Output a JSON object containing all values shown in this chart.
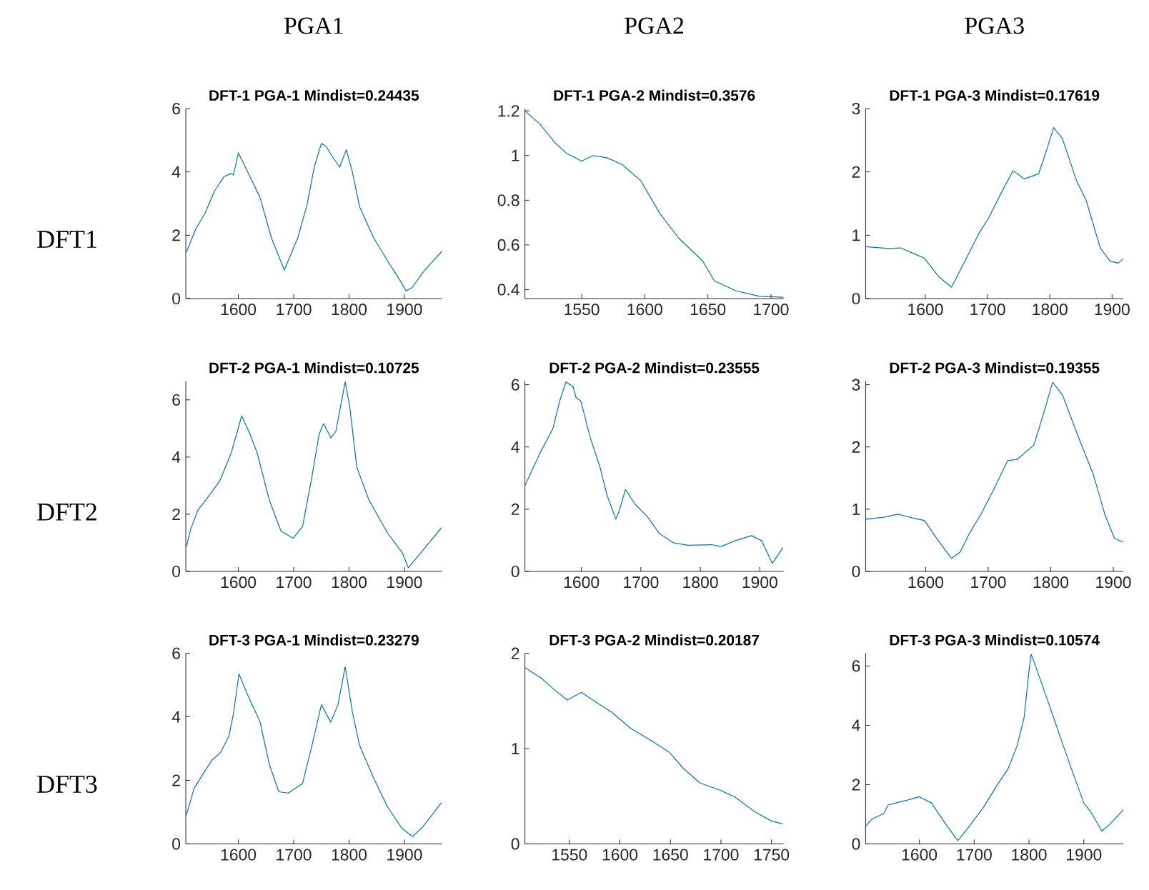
{
  "chart_data": [
    {
      "type": "line",
      "title": "DFT-1 PGA-1 Mindist=0.24435",
      "annotations": [
        "PGA1",
        "DFT1"
      ],
      "color": "#0072bd",
      "xlim": [
        1505,
        1968
      ],
      "ylim": [
        0,
        6
      ],
      "xticks": [
        1600,
        1700,
        1800,
        1900
      ],
      "yticks": [
        0,
        2,
        4,
        6
      ],
      "x": [
        1506,
        1523,
        1540,
        1557,
        1574,
        1587,
        1591,
        1600,
        1621,
        1639,
        1660,
        1683,
        1707,
        1724,
        1737,
        1750,
        1759,
        1769,
        1783,
        1795,
        1806,
        1819,
        1845,
        1871,
        1893,
        1903,
        1914,
        1935,
        1968
      ],
      "values": [
        1.46,
        2.2,
        2.7,
        3.4,
        3.85,
        3.95,
        3.9,
        4.6,
        3.85,
        3.2,
        1.9,
        0.9,
        1.9,
        2.95,
        4.15,
        4.9,
        4.8,
        4.5,
        4.15,
        4.7,
        4.0,
        2.9,
        1.9,
        1.15,
        0.55,
        0.24,
        0.35,
        0.86,
        1.5
      ]
    },
    {
      "type": "line",
      "title": "DFT-1 PGA-2 Mindist=0.3576",
      "annotations": [
        "PGA2"
      ],
      "color": "#0072bd",
      "xlim": [
        1505,
        1710
      ],
      "ylim": [
        0.36,
        1.21
      ],
      "xticks": [
        1550,
        1600,
        1650,
        1700
      ],
      "yticks": [
        0.4,
        0.6,
        0.8,
        1,
        1.2
      ],
      "x": [
        1505,
        1517,
        1529,
        1538,
        1550,
        1559,
        1570,
        1582,
        1597,
        1612,
        1627,
        1646,
        1655,
        1672,
        1691,
        1710
      ],
      "values": [
        1.2,
        1.14,
        1.056,
        1.01,
        0.975,
        1.0,
        0.99,
        0.96,
        0.886,
        0.74,
        0.63,
        0.527,
        0.44,
        0.395,
        0.37,
        0.366
      ]
    },
    {
      "type": "line",
      "title": "DFT-1 PGA-3 Mindist=0.17619",
      "annotations": [
        "PGA3"
      ],
      "color": "#0072bd",
      "xlim": [
        1504,
        1918
      ],
      "ylim": [
        0,
        3
      ],
      "xticks": [
        1600,
        1700,
        1800,
        1900
      ],
      "yticks": [
        0,
        1,
        2,
        3
      ],
      "x": [
        1504,
        1541,
        1560,
        1598,
        1621,
        1642,
        1663,
        1686,
        1701,
        1724,
        1741,
        1759,
        1782,
        1795,
        1806,
        1820,
        1843,
        1858,
        1881,
        1897,
        1910,
        1918
      ],
      "values": [
        0.82,
        0.79,
        0.8,
        0.64,
        0.35,
        0.18,
        0.58,
        1.03,
        1.26,
        1.71,
        2.02,
        1.89,
        1.97,
        2.35,
        2.7,
        2.53,
        1.86,
        1.56,
        0.8,
        0.59,
        0.56,
        0.63
      ]
    },
    {
      "type": "line",
      "title": "DFT-2 PGA-1 Mindist=0.10725",
      "annotations": [
        "DFT2"
      ],
      "color": "#0072bd",
      "xlim": [
        1505,
        1968
      ],
      "ylim": [
        0,
        6.66
      ],
      "xticks": [
        1600,
        1700,
        1800,
        1900
      ],
      "yticks": [
        0,
        2,
        4,
        6
      ],
      "x": [
        1506,
        1514,
        1527,
        1544,
        1566,
        1587,
        1606,
        1621,
        1634,
        1656,
        1677,
        1699,
        1716,
        1733,
        1746,
        1754,
        1767,
        1776,
        1793,
        1801,
        1814,
        1836,
        1870,
        1896,
        1907,
        1930,
        1967
      ],
      "values": [
        0.86,
        1.49,
        2.15,
        2.57,
        3.15,
        4.14,
        5.44,
        4.81,
        4.14,
        2.49,
        1.41,
        1.16,
        1.57,
        3.32,
        4.81,
        5.17,
        4.67,
        4.89,
        6.63,
        5.8,
        3.65,
        2.49,
        1.33,
        0.66,
        0.13,
        0.66,
        1.53
      ]
    },
    {
      "type": "line",
      "title": "DFT-2 PGA-2 Mindist=0.23555",
      "color": "#0072bd",
      "xlim": [
        1505,
        1940
      ],
      "ylim": [
        0,
        6.12
      ],
      "xticks": [
        1600,
        1700,
        1800,
        1900
      ],
      "yticks": [
        0,
        2,
        4,
        6
      ],
      "x": [
        1505,
        1531,
        1552,
        1564,
        1574,
        1586,
        1591,
        1599,
        1615,
        1631,
        1643,
        1658,
        1663,
        1674,
        1691,
        1711,
        1731,
        1755,
        1779,
        1819,
        1835,
        1859,
        1886,
        1903,
        1921,
        1939
      ],
      "values": [
        2.76,
        3.83,
        4.59,
        5.51,
        6.09,
        5.94,
        5.59,
        5.48,
        4.29,
        3.37,
        2.45,
        1.68,
        1.91,
        2.63,
        2.14,
        1.76,
        1.22,
        0.92,
        0.84,
        0.86,
        0.8,
        0.99,
        1.15,
        0.99,
        0.26,
        0.77
      ]
    },
    {
      "type": "line",
      "title": "DFT-2 PGA-3 Mindist=0.19355",
      "color": "#0072bd",
      "xlim": [
        1504,
        1916
      ],
      "ylim": [
        0,
        3.06
      ],
      "xticks": [
        1600,
        1700,
        1800,
        1900
      ],
      "yticks": [
        0,
        1,
        2,
        3
      ],
      "x": [
        1504,
        1533,
        1556,
        1579,
        1598,
        1617,
        1641,
        1655,
        1670,
        1689,
        1708,
        1731,
        1746,
        1773,
        1788,
        1803,
        1819,
        1845,
        1868,
        1887,
        1902,
        1916
      ],
      "values": [
        0.84,
        0.87,
        0.92,
        0.86,
        0.82,
        0.54,
        0.21,
        0.31,
        0.61,
        0.93,
        1.3,
        1.78,
        1.8,
        2.03,
        2.52,
        3.04,
        2.83,
        2.14,
        1.56,
        0.9,
        0.53,
        0.47
      ]
    },
    {
      "type": "line",
      "title": "DFT-3 PGA-1 Mindist=0.23279",
      "annotations": [
        "DFT3"
      ],
      "color": "#0072bd",
      "xlim": [
        1505,
        1968
      ],
      "ylim": [
        0,
        6
      ],
      "xticks": [
        1600,
        1700,
        1800,
        1900
      ],
      "yticks": [
        0,
        2,
        4,
        6
      ],
      "x": [
        1506,
        1520,
        1536,
        1553,
        1568,
        1583,
        1591,
        1601,
        1617,
        1639,
        1656,
        1673,
        1690,
        1716,
        1733,
        1750,
        1767,
        1780,
        1793,
        1806,
        1819,
        1845,
        1870,
        1896,
        1915,
        1934,
        1967
      ],
      "values": [
        0.9,
        1.75,
        2.2,
        2.65,
        2.88,
        3.4,
        4.08,
        5.35,
        4.68,
        3.85,
        2.5,
        1.64,
        1.6,
        1.9,
        3.1,
        4.38,
        3.83,
        4.38,
        5.58,
        4.15,
        3.1,
        2.05,
        1.15,
        0.48,
        0.23,
        0.55,
        1.3
      ]
    },
    {
      "type": "line",
      "title": "DFT-3 PGA-2 Mindist=0.20187",
      "color": "#0072bd",
      "xlim": [
        1506,
        1762
      ],
      "ylim": [
        0,
        2
      ],
      "xticks": [
        1550,
        1600,
        1650,
        1700,
        1750
      ],
      "yticks": [
        0,
        1,
        2
      ],
      "x": [
        1506,
        1522,
        1536,
        1548,
        1562,
        1576,
        1592,
        1611,
        1630,
        1649,
        1663,
        1679,
        1700,
        1714,
        1733,
        1750,
        1761
      ],
      "values": [
        1.85,
        1.74,
        1.61,
        1.51,
        1.59,
        1.49,
        1.38,
        1.21,
        1.09,
        0.96,
        0.79,
        0.64,
        0.56,
        0.49,
        0.34,
        0.24,
        0.21
      ]
    },
    {
      "type": "line",
      "title": "DFT-3 PGA-3 Mindist=0.10574",
      "color": "#0072bd",
      "xlim": [
        1502,
        1972
      ],
      "ylim": [
        0,
        6.43
      ],
      "xticks": [
        1600,
        1700,
        1800,
        1900
      ],
      "yticks": [
        0,
        2,
        4,
        6
      ],
      "x": [
        1502,
        1513,
        1535,
        1543,
        1557,
        1583,
        1600,
        1622,
        1648,
        1670,
        1691,
        1717,
        1743,
        1761,
        1778,
        1791,
        1800,
        1804,
        1815,
        1830,
        1857,
        1878,
        1900,
        1913,
        1933,
        1948,
        1972
      ],
      "values": [
        0.59,
        0.83,
        1.02,
        1.31,
        1.38,
        1.5,
        1.59,
        1.38,
        0.67,
        0.11,
        0.59,
        1.23,
        2.02,
        2.5,
        3.29,
        4.25,
        5.84,
        6.4,
        5.84,
        5.05,
        3.61,
        2.5,
        1.38,
        1.07,
        0.43,
        0.67,
        1.15
      ]
    }
  ]
}
